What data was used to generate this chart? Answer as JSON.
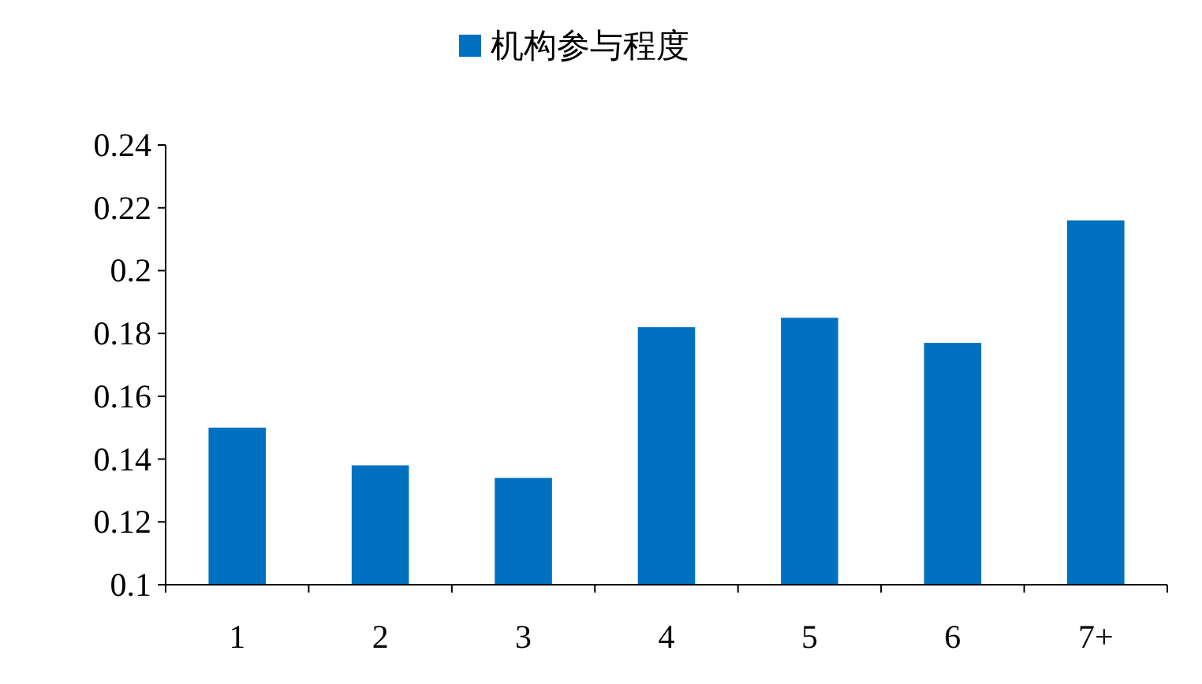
{
  "chart_data": {
    "type": "bar",
    "categories": [
      "1",
      "2",
      "3",
      "4",
      "5",
      "6",
      "7+"
    ],
    "series": [
      {
        "name": "机构参与程度",
        "color": "#0070c0",
        "values": [
          0.15,
          0.138,
          0.134,
          0.182,
          0.185,
          0.177,
          0.216
        ]
      }
    ],
    "ylim": [
      0.1,
      0.24
    ],
    "yticks": [
      0.1,
      0.12,
      0.14,
      0.16,
      0.18,
      0.2,
      0.22,
      0.24
    ],
    "legend": "top"
  }
}
